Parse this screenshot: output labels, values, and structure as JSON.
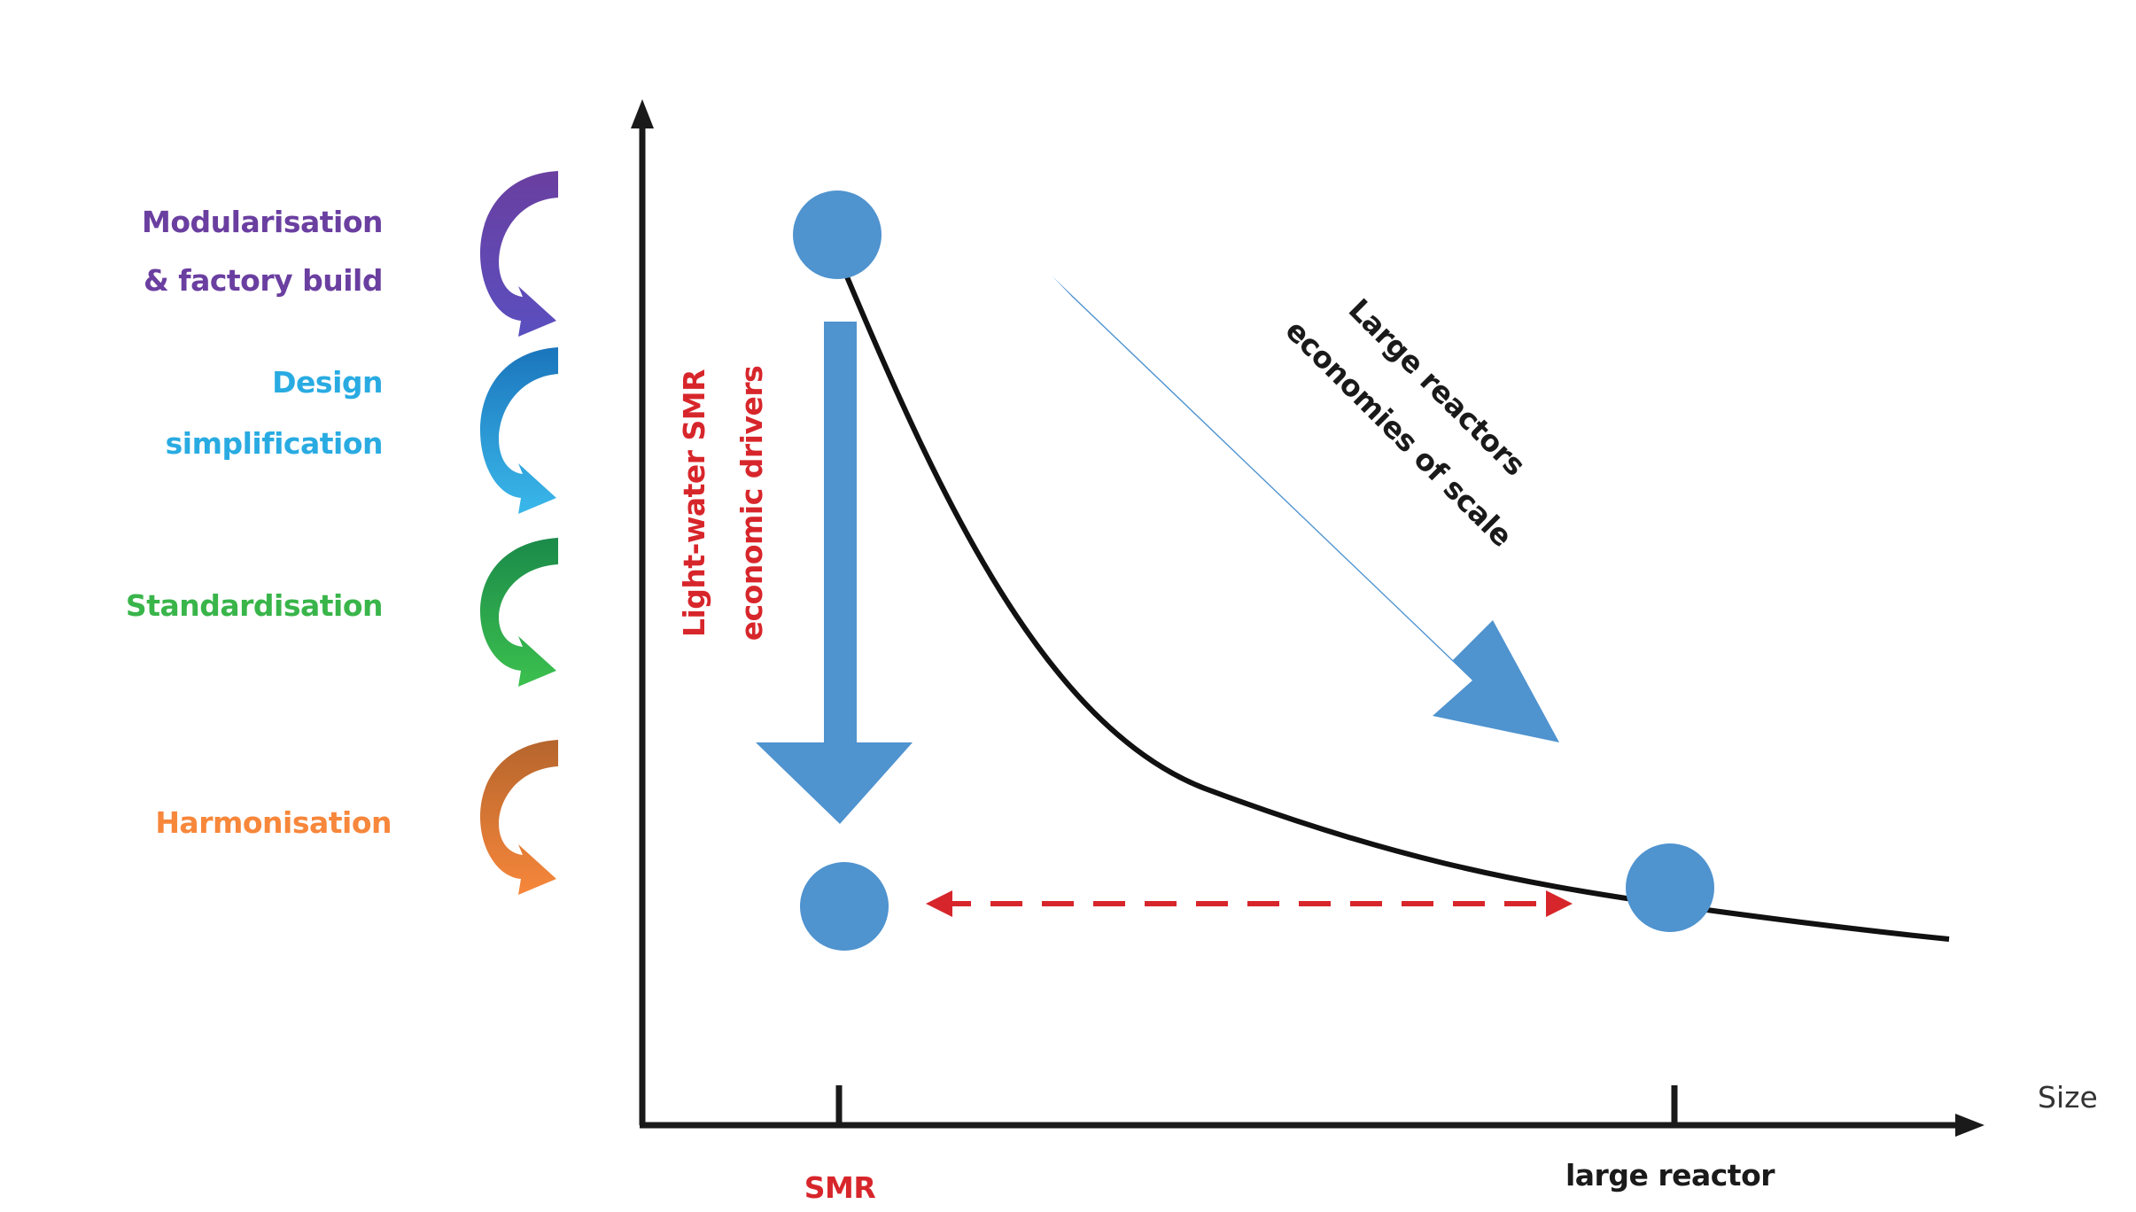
{
  "drivers": [
    {
      "line1": "Modularisation",
      "line2": "& factory build",
      "color": "#6a3fa0",
      "arrow_dark": "#6a3fa0",
      "arrow_light": "#5a4fbf"
    },
    {
      "line1": "Design",
      "line2": "simplification",
      "color": "#29abe2",
      "arrow_dark": "#1b75bc",
      "arrow_light": "#3ab8ea"
    },
    {
      "line1": "Standardisation",
      "line2": "",
      "color": "#39b54a",
      "arrow_dark": "#1b8a4a",
      "arrow_light": "#3cc04e"
    },
    {
      "line1": "Harmonisation",
      "line2": "",
      "color": "#f7873b",
      "arrow_dark": "#b5652d",
      "arrow_light": "#f7873b"
    }
  ],
  "axes": {
    "x_label": "Size",
    "tick_smr": "SMR",
    "tick_large": "large reactor"
  },
  "annotations": {
    "smr_drivers_line1": "Light-water SMR",
    "smr_drivers_line2": "economic drivers",
    "large_line1": "Large reactors",
    "large_line2": "economies of scale"
  },
  "colors": {
    "node_blue": "#4f93cf",
    "smr_red": "#d7262b",
    "dashed_red": "#d7262b",
    "axis": "#1a1a1a",
    "curve": "#111111"
  }
}
